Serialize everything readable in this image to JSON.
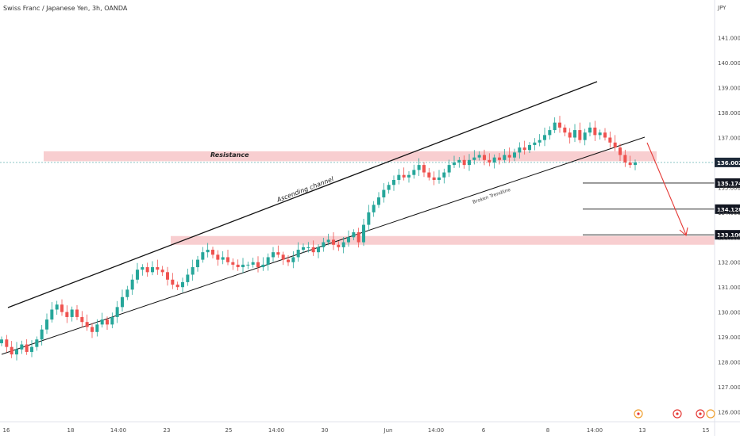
{
  "chart_data": {
    "type": "candlestick",
    "title": "Swiss Franc / Japanese Yen, 3h, OANDA",
    "currency": "JPY",
    "ylim": [
      125.6,
      142.2
    ],
    "y_ticks": [
      "126.000",
      "127.000",
      "128.000",
      "129.000",
      "130.000",
      "131.000",
      "132.000",
      "133.000",
      "134.000",
      "135.000",
      "136.000",
      "137.000",
      "138.000",
      "139.000",
      "140.000",
      "141.000"
    ],
    "x_ticks": [
      "16",
      "18",
      "14:00",
      "23",
      "25",
      "14:00",
      "30",
      "Jun",
      "14:00",
      "6",
      "8",
      "14:00",
      "13",
      "15"
    ],
    "last_price": "136.002",
    "levels": [
      {
        "label": "135.174",
        "value": 135.174
      },
      {
        "label": "134.128",
        "value": 134.128
      },
      {
        "label": "133.100",
        "value": 133.1
      }
    ],
    "zones": [
      {
        "label": "Resistance",
        "from": 136.05,
        "to": 136.45
      },
      {
        "label": "",
        "from": 132.7,
        "to": 133.05
      }
    ],
    "annotations": {
      "channel": "Ascending channel",
      "trendline": "Broken Trendline"
    },
    "colors": {
      "up": "#26a69a",
      "down": "#ef5350",
      "zone": "#f7c5c8",
      "last_price_bg": "#1e2a3a",
      "level_bg": "#131722",
      "arrow": "#e53935"
    },
    "closes": [
      128.9,
      128.6,
      128.3,
      128.5,
      128.7,
      128.4,
      128.6,
      128.9,
      129.3,
      129.7,
      130.1,
      130.3,
      130.0,
      129.8,
      130.1,
      129.8,
      129.6,
      129.4,
      129.2,
      129.5,
      129.7,
      129.5,
      129.8,
      130.2,
      130.6,
      130.9,
      131.3,
      131.7,
      131.8,
      131.6,
      131.8,
      131.7,
      131.6,
      131.3,
      131.1,
      131.0,
      131.2,
      131.5,
      131.8,
      132.1,
      132.4,
      132.5,
      132.3,
      132.1,
      132.2,
      132.0,
      131.9,
      131.8,
      131.9,
      131.9,
      132.0,
      131.8,
      131.9,
      132.2,
      132.4,
      132.3,
      132.1,
      132.0,
      132.2,
      132.5,
      132.6,
      132.6,
      132.4,
      132.6,
      132.8,
      132.9,
      132.7,
      132.6,
      132.8,
      133.0,
      133.2,
      132.8,
      133.5,
      134.0,
      134.3,
      134.6,
      134.9,
      135.1,
      135.3,
      135.5,
      135.4,
      135.5,
      135.7,
      135.9,
      135.6,
      135.4,
      135.3,
      135.4,
      135.6,
      135.9,
      136.0,
      136.1,
      135.9,
      136.1,
      136.2,
      136.3,
      136.1,
      136.0,
      136.2,
      136.1,
      136.3,
      136.2,
      136.4,
      136.6,
      136.5,
      136.7,
      136.8,
      136.9,
      137.1,
      137.3,
      137.6,
      137.4,
      137.2,
      137.0,
      137.3,
      136.9,
      137.2,
      137.4,
      137.1,
      137.2,
      137.0,
      136.8,
      136.6,
      136.3,
      136.0,
      135.9,
      136.0
    ]
  }
}
